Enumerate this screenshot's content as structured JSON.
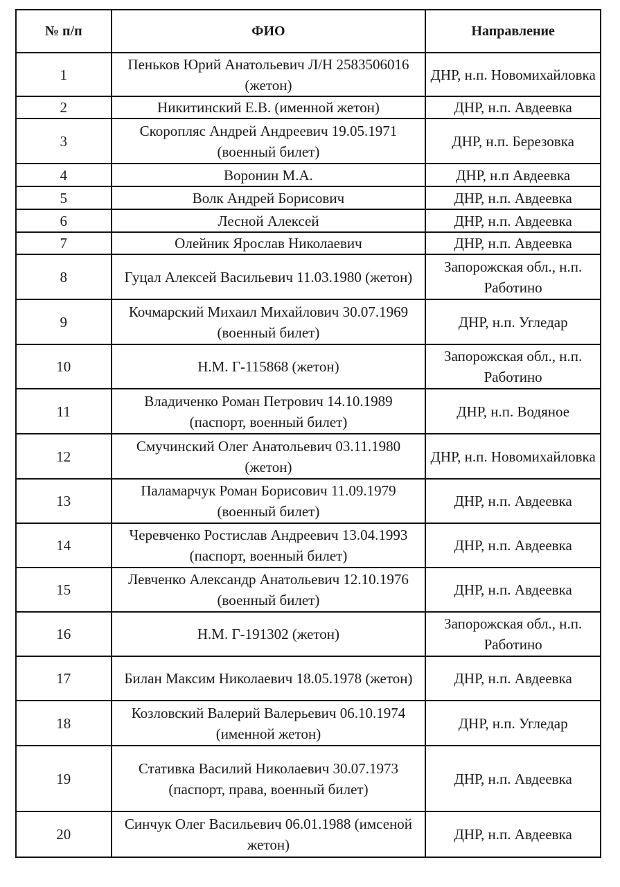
{
  "headers": [
    "№ п/п",
    "ФИО",
    "Направление"
  ],
  "rows": [
    {
      "n": "1",
      "name": "Пеньков Юрий Анатольевич Л/Н 2583506016 (жетон)",
      "dir": "ДНР, н.п. Новомихайловка"
    },
    {
      "n": "2",
      "name": "Никитинский Е.В. (именной жетон)",
      "dir": "ДНР, н.п. Авдеевка"
    },
    {
      "n": "3",
      "name": "Скоропляс Андрей Андреевич 19.05.1971 (военный билет)",
      "dir": "ДНР, н.п. Березовка"
    },
    {
      "n": "4",
      "name": "Воронин М.А.",
      "dir": "ДНР, н.п Авдеевка"
    },
    {
      "n": "5",
      "name": "Волк Андрей Борисович",
      "dir": "ДНР, н.п. Авдеевка"
    },
    {
      "n": "6",
      "name": "Лесной Алексей",
      "dir": "ДНР, н.п. Авдеевка"
    },
    {
      "n": "7",
      "name": "Олейник Ярослав Николаевич",
      "dir": "ДНР, н.п. Авдеевка"
    },
    {
      "n": "8",
      "name": "Гуцал Алексей Васильевич 11.03.1980 (жетон)",
      "dir": "Запорожская обл., н.п. Работино"
    },
    {
      "n": "9",
      "name": "Кочмарский Михаил Михайлович 30.07.1969 (военный билет)",
      "dir": "ДНР, н.п. Угледар"
    },
    {
      "n": "10",
      "name": "Н.М. Г-115868 (жетон)",
      "dir": "Запорожская обл., н.п. Работино"
    },
    {
      "n": "11",
      "name": "Владиченко Роман Петрович 14.10.1989 (паспорт, военный билет)",
      "dir": "ДНР, н.п. Водяное"
    },
    {
      "n": "12",
      "name": "Смучинский Олег Анатольевич 03.11.1980 (жетон)",
      "dir": "ДНР, н.п. Новомихайловка"
    },
    {
      "n": "13",
      "name": "Паламарчук Роман Борисович 11.09.1979 (военный билет)",
      "dir": "ДНР, н.п. Авдеевка"
    },
    {
      "n": "14",
      "name": "Черевченко Ростислав Андреевич 13.04.1993 (паспорт, военный билет)",
      "dir": "ДНР, н.п. Авдеевка"
    },
    {
      "n": "15",
      "name": "Левченко Александр Анатольевич 12.10.1976 (военный билет)",
      "dir": "ДНР, н.п. Авдеевка"
    },
    {
      "n": "16",
      "name": "Н.М. Г-191302 (жетон)",
      "dir": "Запорожская обл., н.п. Работино"
    },
    {
      "n": "17",
      "name": "Билан Максим Николаевич 18.05.1978 (жетон)",
      "dir": "ДНР, н.п. Авдеевка"
    },
    {
      "n": "18",
      "name": "Козловский Валерий Валерьевич 06.10.1974 (именной жетон)",
      "dir": "ДНР, н.п. Угледар"
    },
    {
      "n": "19",
      "name": "Стативка Василий Николаевич 30.07.1973 (паспорт, права, военный билет)",
      "dir": "ДНР, н.п. Авдеевка"
    },
    {
      "n": "20",
      "name": "Синчук Олег Васильевич 06.01.1988 (имсеной жетон)",
      "dir": "ДНР, н.п. Авдеевка"
    }
  ]
}
